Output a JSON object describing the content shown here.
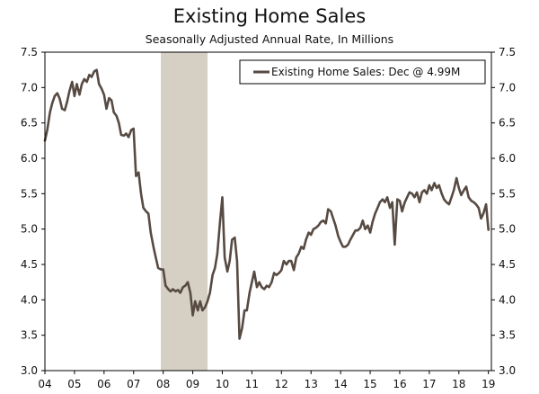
{
  "header": {
    "title": "Existing Home Sales",
    "subtitle": "Seasonally Adjusted Annual Rate, In Millions"
  },
  "colors": {
    "line": "#574a42",
    "recession": "#d5d0c3",
    "frame": "#000000"
  },
  "chart_data": {
    "type": "line",
    "title": "Existing Home Sales",
    "subtitle": "Seasonally Adjusted Annual Rate, In Millions",
    "xlabel": "",
    "ylabel": "",
    "xlim": [
      2004.0,
      2019.1
    ],
    "ylim": [
      3.0,
      7.5
    ],
    "y_ticks": [
      "3.0",
      "3.5",
      "4.0",
      "4.5",
      "5.0",
      "5.5",
      "6.0",
      "6.5",
      "7.0",
      "7.5"
    ],
    "x_ticks": [
      {
        "label": "04",
        "x": 2004
      },
      {
        "label": "05",
        "x": 2005
      },
      {
        "label": "06",
        "x": 2006
      },
      {
        "label": "07",
        "x": 2007
      },
      {
        "label": "08",
        "x": 2008
      },
      {
        "label": "09",
        "x": 2009
      },
      {
        "label": "10",
        "x": 2010
      },
      {
        "label": "11",
        "x": 2011
      },
      {
        "label": "12",
        "x": 2012
      },
      {
        "label": "13",
        "x": 2013
      },
      {
        "label": "14",
        "x": 2014
      },
      {
        "label": "15",
        "x": 2015
      },
      {
        "label": "16",
        "x": 2016
      },
      {
        "label": "17",
        "x": 2017
      },
      {
        "label": "18",
        "x": 2018
      },
      {
        "label": "19",
        "x": 2019
      }
    ],
    "recession": {
      "start": 2007.92,
      "end": 2009.5
    },
    "grid": false,
    "legend_position": "top-right",
    "series": [
      {
        "name": "Existing Home Sales: Dec @ 4.99M",
        "points": [
          [
            2004.0,
            6.25
          ],
          [
            2004.08,
            6.4
          ],
          [
            2004.17,
            6.65
          ],
          [
            2004.25,
            6.78
          ],
          [
            2004.33,
            6.88
          ],
          [
            2004.42,
            6.92
          ],
          [
            2004.5,
            6.84
          ],
          [
            2004.58,
            6.7
          ],
          [
            2004.67,
            6.68
          ],
          [
            2004.75,
            6.8
          ],
          [
            2004.83,
            6.95
          ],
          [
            2004.92,
            7.08
          ],
          [
            2005.0,
            6.88
          ],
          [
            2005.08,
            7.05
          ],
          [
            2005.17,
            6.9
          ],
          [
            2005.25,
            7.05
          ],
          [
            2005.33,
            7.12
          ],
          [
            2005.42,
            7.08
          ],
          [
            2005.5,
            7.18
          ],
          [
            2005.58,
            7.15
          ],
          [
            2005.67,
            7.23
          ],
          [
            2005.75,
            7.25
          ],
          [
            2005.83,
            7.05
          ],
          [
            2005.92,
            6.98
          ],
          [
            2006.0,
            6.9
          ],
          [
            2006.08,
            6.7
          ],
          [
            2006.17,
            6.85
          ],
          [
            2006.25,
            6.82
          ],
          [
            2006.33,
            6.65
          ],
          [
            2006.42,
            6.6
          ],
          [
            2006.5,
            6.5
          ],
          [
            2006.58,
            6.33
          ],
          [
            2006.67,
            6.32
          ],
          [
            2006.75,
            6.35
          ],
          [
            2006.83,
            6.3
          ],
          [
            2006.92,
            6.4
          ],
          [
            2007.0,
            6.42
          ],
          [
            2007.08,
            5.75
          ],
          [
            2007.17,
            5.8
          ],
          [
            2007.25,
            5.5
          ],
          [
            2007.33,
            5.3
          ],
          [
            2007.42,
            5.25
          ],
          [
            2007.5,
            5.22
          ],
          [
            2007.58,
            4.95
          ],
          [
            2007.67,
            4.75
          ],
          [
            2007.75,
            4.6
          ],
          [
            2007.83,
            4.45
          ],
          [
            2007.92,
            4.43
          ],
          [
            2008.0,
            4.43
          ],
          [
            2008.08,
            4.2
          ],
          [
            2008.17,
            4.15
          ],
          [
            2008.25,
            4.12
          ],
          [
            2008.33,
            4.15
          ],
          [
            2008.42,
            4.12
          ],
          [
            2008.5,
            4.14
          ],
          [
            2008.58,
            4.1
          ],
          [
            2008.67,
            4.18
          ],
          [
            2008.75,
            4.2
          ],
          [
            2008.83,
            4.25
          ],
          [
            2008.92,
            4.1
          ],
          [
            2009.0,
            3.78
          ],
          [
            2009.08,
            3.98
          ],
          [
            2009.17,
            3.85
          ],
          [
            2009.25,
            3.98
          ],
          [
            2009.33,
            3.85
          ],
          [
            2009.42,
            3.9
          ],
          [
            2009.5,
            3.98
          ],
          [
            2009.58,
            4.1
          ],
          [
            2009.67,
            4.35
          ],
          [
            2009.75,
            4.45
          ],
          [
            2009.83,
            4.65
          ],
          [
            2009.92,
            5.1
          ],
          [
            2010.0,
            5.45
          ],
          [
            2010.08,
            4.6
          ],
          [
            2010.17,
            4.4
          ],
          [
            2010.25,
            4.55
          ],
          [
            2010.33,
            4.85
          ],
          [
            2010.42,
            4.88
          ],
          [
            2010.5,
            4.55
          ],
          [
            2010.58,
            3.45
          ],
          [
            2010.67,
            3.6
          ],
          [
            2010.75,
            3.85
          ],
          [
            2010.83,
            3.85
          ],
          [
            2010.92,
            4.1
          ],
          [
            2011.0,
            4.25
          ],
          [
            2011.08,
            4.4
          ],
          [
            2011.17,
            4.18
          ],
          [
            2011.25,
            4.25
          ],
          [
            2011.33,
            4.18
          ],
          [
            2011.42,
            4.15
          ],
          [
            2011.5,
            4.2
          ],
          [
            2011.58,
            4.18
          ],
          [
            2011.67,
            4.25
          ],
          [
            2011.75,
            4.38
          ],
          [
            2011.83,
            4.35
          ],
          [
            2011.92,
            4.38
          ],
          [
            2012.0,
            4.42
          ],
          [
            2012.08,
            4.55
          ],
          [
            2012.17,
            4.5
          ],
          [
            2012.25,
            4.55
          ],
          [
            2012.33,
            4.55
          ],
          [
            2012.42,
            4.42
          ],
          [
            2012.5,
            4.6
          ],
          [
            2012.58,
            4.65
          ],
          [
            2012.67,
            4.75
          ],
          [
            2012.75,
            4.72
          ],
          [
            2012.83,
            4.85
          ],
          [
            2012.92,
            4.95
          ],
          [
            2013.0,
            4.92
          ],
          [
            2013.08,
            5.0
          ],
          [
            2013.17,
            5.02
          ],
          [
            2013.25,
            5.05
          ],
          [
            2013.33,
            5.1
          ],
          [
            2013.42,
            5.12
          ],
          [
            2013.5,
            5.08
          ],
          [
            2013.58,
            5.28
          ],
          [
            2013.67,
            5.25
          ],
          [
            2013.75,
            5.15
          ],
          [
            2013.83,
            5.05
          ],
          [
            2013.92,
            4.9
          ],
          [
            2014.0,
            4.82
          ],
          [
            2014.08,
            4.75
          ],
          [
            2014.17,
            4.75
          ],
          [
            2014.25,
            4.78
          ],
          [
            2014.33,
            4.85
          ],
          [
            2014.42,
            4.92
          ],
          [
            2014.5,
            4.98
          ],
          [
            2014.58,
            4.98
          ],
          [
            2014.67,
            5.02
          ],
          [
            2014.75,
            5.12
          ],
          [
            2014.83,
            5.0
          ],
          [
            2014.92,
            5.05
          ],
          [
            2015.0,
            4.95
          ],
          [
            2015.08,
            5.1
          ],
          [
            2015.17,
            5.22
          ],
          [
            2015.25,
            5.3
          ],
          [
            2015.33,
            5.38
          ],
          [
            2015.42,
            5.42
          ],
          [
            2015.5,
            5.38
          ],
          [
            2015.58,
            5.45
          ],
          [
            2015.67,
            5.3
          ],
          [
            2015.75,
            5.38
          ],
          [
            2015.83,
            4.78
          ],
          [
            2015.92,
            5.42
          ],
          [
            2016.0,
            5.4
          ],
          [
            2016.08,
            5.25
          ],
          [
            2016.17,
            5.38
          ],
          [
            2016.25,
            5.45
          ],
          [
            2016.33,
            5.52
          ],
          [
            2016.42,
            5.5
          ],
          [
            2016.5,
            5.45
          ],
          [
            2016.58,
            5.52
          ],
          [
            2016.67,
            5.38
          ],
          [
            2016.75,
            5.52
          ],
          [
            2016.83,
            5.55
          ],
          [
            2016.92,
            5.5
          ],
          [
            2017.0,
            5.62
          ],
          [
            2017.08,
            5.55
          ],
          [
            2017.17,
            5.65
          ],
          [
            2017.25,
            5.58
          ],
          [
            2017.33,
            5.62
          ],
          [
            2017.42,
            5.5
          ],
          [
            2017.5,
            5.42
          ],
          [
            2017.58,
            5.38
          ],
          [
            2017.67,
            5.35
          ],
          [
            2017.75,
            5.45
          ],
          [
            2017.83,
            5.55
          ],
          [
            2017.92,
            5.72
          ],
          [
            2018.0,
            5.58
          ],
          [
            2018.08,
            5.48
          ],
          [
            2018.17,
            5.55
          ],
          [
            2018.25,
            5.6
          ],
          [
            2018.33,
            5.45
          ],
          [
            2018.42,
            5.4
          ],
          [
            2018.5,
            5.38
          ],
          [
            2018.58,
            5.35
          ],
          [
            2018.67,
            5.3
          ],
          [
            2018.75,
            5.15
          ],
          [
            2018.83,
            5.22
          ],
          [
            2018.92,
            5.35
          ],
          [
            2019.0,
            4.99
          ]
        ]
      }
    ]
  }
}
